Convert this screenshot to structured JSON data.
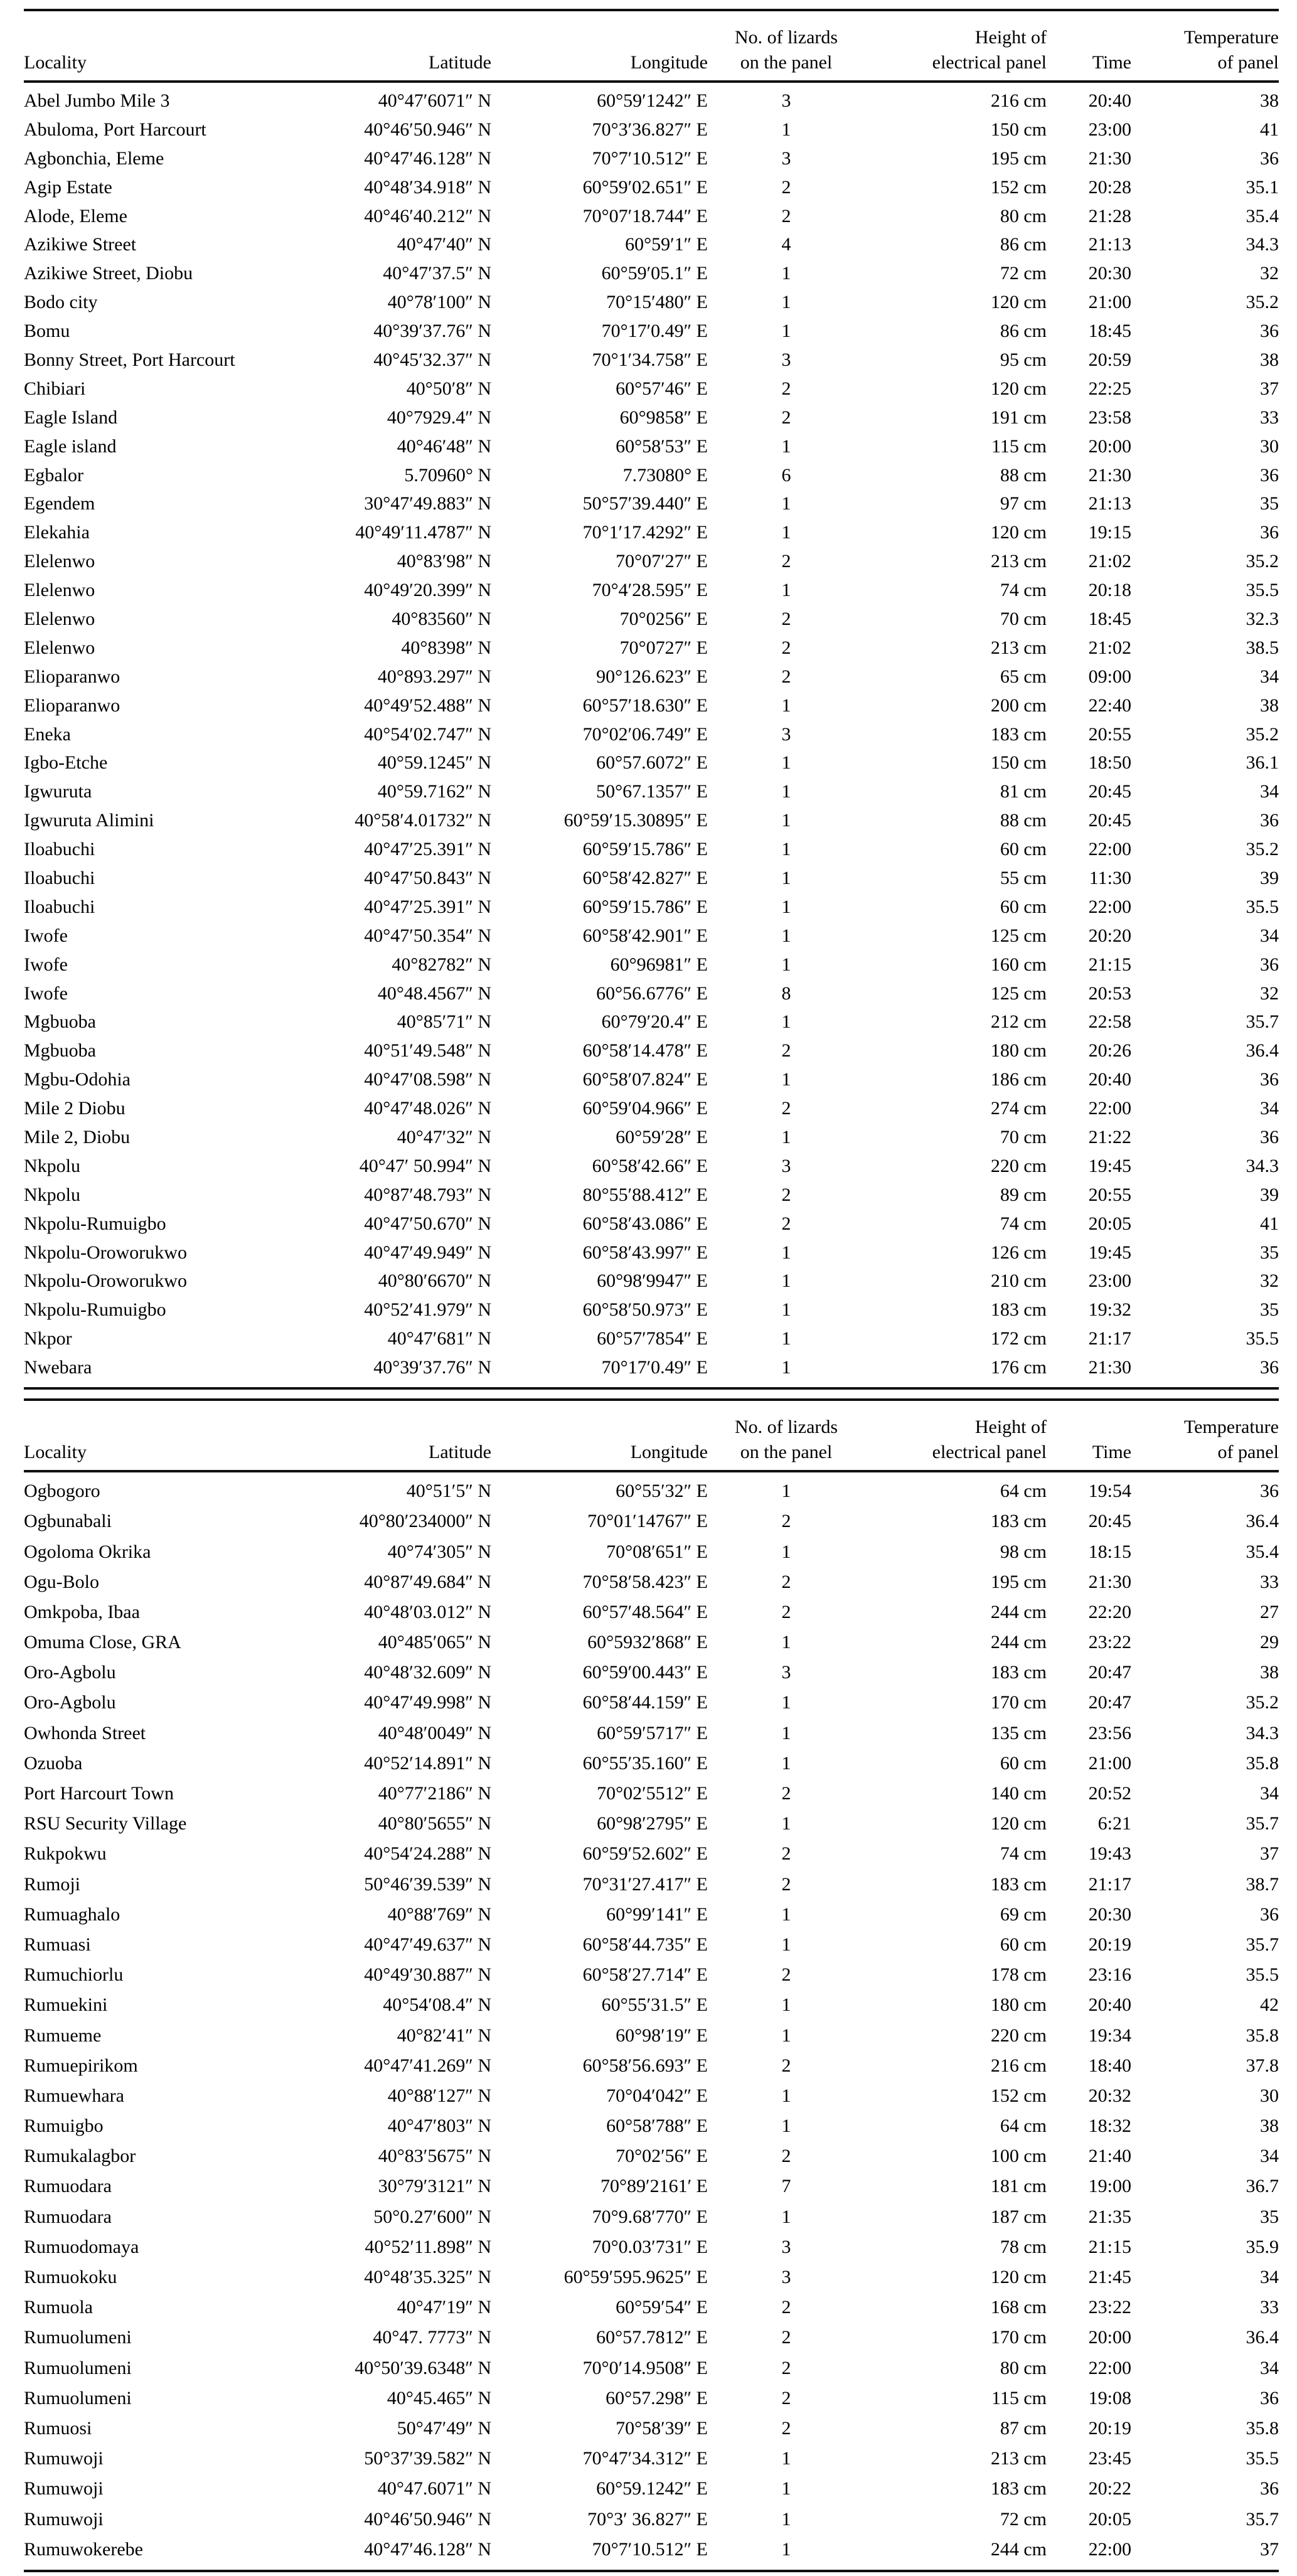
{
  "columns": {
    "locality": "Locality",
    "latitude": "Latitude",
    "longitude": "Longitude",
    "lizards_line1": "No. of lizards",
    "lizards_line2": "on the panel",
    "height_line1": "Height of",
    "height_line2": "electrical panel",
    "time": "Time",
    "temp_line1": "Temperature",
    "temp_line2": "of panel"
  },
  "tables": [
    {
      "rows": [
        [
          "Abel Jumbo Mile 3",
          "40°47′6071″ N",
          "60°59′1242″ E",
          "3",
          "216 cm",
          "20:40",
          "38"
        ],
        [
          "Abuloma, Port Harcourt",
          "40°46′50.946″ N",
          "70°3′36.827″ E",
          "1",
          "150 cm",
          "23:00",
          "41"
        ],
        [
          "Agbonchia, Eleme",
          "40°47′46.128″ N",
          "70°7′10.512″ E",
          "3",
          "195 cm",
          "21:30",
          "36"
        ],
        [
          "Agip Estate",
          "40°48′34.918″ N",
          "60°59′02.651″ E",
          "2",
          "152 cm",
          "20:28",
          "35.1"
        ],
        [
          "Alode, Eleme",
          "40°46′40.212″ N",
          "70°07′18.744″ E",
          "2",
          "80 cm",
          "21:28",
          "35.4"
        ],
        [
          "Azikiwe Street",
          "40°47′40″ N",
          "60°59′1″ E",
          "4",
          "86 cm",
          "21:13",
          "34.3"
        ],
        [
          "Azikiwe Street, Diobu",
          "40°47′37.5″ N",
          "60°59′05.1″ E",
          "1",
          "72 cm",
          "20:30",
          "32"
        ],
        [
          "Bodo city",
          "40°78′100″ N",
          "70°15′480″ E",
          "1",
          "120 cm",
          "21:00",
          "35.2"
        ],
        [
          "Bomu",
          "40°39′37.76″ N",
          "70°17′0.49″ E",
          "1",
          "86 cm",
          "18:45",
          "36"
        ],
        [
          "Bonny Street, Port Harcourt",
          "40°45′32.37″ N",
          "70°1′34.758″ E",
          "3",
          "95 cm",
          "20:59",
          "38"
        ],
        [
          "Chibiari",
          "40°50′8″ N",
          "60°57′46″ E",
          "2",
          "120 cm",
          "22:25",
          "37"
        ],
        [
          "Eagle Island",
          "40°7929.4″ N",
          "60°9858″ E",
          "2",
          "191 cm",
          "23:58",
          "33"
        ],
        [
          "Eagle island",
          "40°46′48″ N",
          "60°58′53″ E",
          "1",
          "115 cm",
          "20:00",
          "30"
        ],
        [
          "Egbalor",
          "5.70960° N",
          "7.73080° E",
          "6",
          "88 cm",
          "21:30",
          "36"
        ],
        [
          "Egendem",
          "30°47′49.883″ N",
          "50°57′39.440″ E",
          "1",
          "97 cm",
          "21:13",
          "35"
        ],
        [
          "Elekahia",
          "40°49′11.4787″ N",
          "70°1′17.4292″ E",
          "1",
          "120 cm",
          "19:15",
          "36"
        ],
        [
          "Elelenwo",
          "40°83′98″ N",
          "70°07′27″ E",
          "2",
          "213 cm",
          "21:02",
          "35.2"
        ],
        [
          "Elelenwo",
          "40°49′20.399″ N",
          "70°4′28.595″ E",
          "1",
          "74 cm",
          "20:18",
          "35.5"
        ],
        [
          "Elelenwo",
          "40°83560″ N",
          "70°0256″ E",
          "2",
          "70 cm",
          "18:45",
          "32.3"
        ],
        [
          "Elelenwo",
          "40°8398″ N",
          "70°0727″ E",
          "2",
          "213 cm",
          "21:02",
          "38.5"
        ],
        [
          "Elioparanwo",
          "40°893.297″ N",
          "90°126.623″ E",
          "2",
          "65 cm",
          "09:00",
          "34"
        ],
        [
          "Elioparanwo",
          "40°49′52.488″ N",
          "60°57′18.630″ E",
          "1",
          "200 cm",
          "22:40",
          "38"
        ],
        [
          "Eneka",
          "40°54′02.747″ N",
          "70°02′06.749″ E",
          "3",
          "183 cm",
          "20:55",
          "35.2"
        ],
        [
          "Igbo-Etche",
          "40°59.1245″ N",
          "60°57.6072″ E",
          "1",
          "150 cm",
          "18:50",
          "36.1"
        ],
        [
          "Igwuruta",
          "40°59.7162″ N",
          "50°67.1357″ E",
          "1",
          "81 cm",
          "20:45",
          "34"
        ],
        [
          "Igwuruta Alimini",
          "40°58′4.01732″ N",
          "60°59′15.30895″ E",
          "1",
          "88 cm",
          "20:45",
          "36"
        ],
        [
          "Iloabuchi",
          "40°47′25.391″ N",
          "60°59′15.786″ E",
          "1",
          "60 cm",
          "22:00",
          "35.2"
        ],
        [
          "Iloabuchi",
          "40°47′50.843″ N",
          "60°58′42.827″ E",
          "1",
          "55 cm",
          "11:30",
          "39"
        ],
        [
          "Iloabuchi",
          "40°47′25.391″ N",
          "60°59′15.786″ E",
          "1",
          "60 cm",
          "22:00",
          "35.5"
        ],
        [
          "Iwofe",
          "40°47′50.354″ N",
          "60°58′42.901″ E",
          "1",
          "125 cm",
          "20:20",
          "34"
        ],
        [
          "Iwofe",
          "40°82782″ N",
          "60°96981″ E",
          "1",
          "160 cm",
          "21:15",
          "36"
        ],
        [
          "Iwofe",
          "40°48.4567″ N",
          "60°56.6776″ E",
          "8",
          "125 cm",
          "20:53",
          "32"
        ],
        [
          "Mgbuoba",
          "40°85′71″ N",
          "60°79′20.4″ E",
          "1",
          "212 cm",
          "22:58",
          "35.7"
        ],
        [
          "Mgbuoba",
          "40°51′49.548″ N",
          "60°58′14.478″ E",
          "2",
          "180 cm",
          "20:26",
          "36.4"
        ],
        [
          "Mgbu-Odohia",
          "40°47′08.598″ N",
          "60°58′07.824″ E",
          "1",
          "186 cm",
          "20:40",
          "36"
        ],
        [
          "Mile 2 Diobu",
          "40°47′48.026″ N",
          "60°59′04.966″ E",
          "2",
          "274 cm",
          "22:00",
          "34"
        ],
        [
          "Mile 2, Diobu",
          "40°47′32″ N",
          "60°59′28″ E",
          "1",
          "70 cm",
          "21:22",
          "36"
        ],
        [
          "Nkpolu",
          "40°47′ 50.994″ N",
          "60°58′42.66″ E",
          "3",
          "220 cm",
          "19:45",
          "34.3"
        ],
        [
          "Nkpolu",
          "40°87′48.793″ N",
          "80°55′88.412″ E",
          "2",
          "89 cm",
          "20:55",
          "39"
        ],
        [
          "Nkpolu-Rumuigbo",
          "40°47′50.670″ N",
          "60°58′43.086″ E",
          "2",
          "74 cm",
          "20:05",
          "41"
        ],
        [
          "Nkpolu-Oroworukwo",
          "40°47′49.949″ N",
          "60°58′43.997″ E",
          "1",
          "126 cm",
          "19:45",
          "35"
        ],
        [
          "Nkpolu-Oroworukwo",
          "40°80′6670″ N",
          "60°98′9947″ E",
          "1",
          "210 cm",
          "23:00",
          "32"
        ],
        [
          "Nkpolu-Rumuigbo",
          "40°52′41.979″ N",
          "60°58′50.973″ E",
          "1",
          "183 cm",
          "19:32",
          "35"
        ],
        [
          "Nkpor",
          "40°47′681″ N",
          "60°57′7854″ E",
          "1",
          "172 cm",
          "21:17",
          "35.5"
        ],
        [
          "Nwebara",
          "40°39′37.76″ N",
          "70°17′0.49″ E",
          "1",
          "176 cm",
          "21:30",
          "36"
        ]
      ]
    },
    {
      "rows": [
        [
          "Ogbogoro",
          "40°51′5″ N",
          "60°55′32″ E",
          "1",
          "64 cm",
          "19:54",
          "36"
        ],
        [
          "Ogbunabali",
          "40°80′234000″ N",
          "70°01′14767″ E",
          "2",
          "183 cm",
          "20:45",
          "36.4"
        ],
        [
          "Ogoloma Okrika",
          "40°74′305″ N",
          "70°08′651″ E",
          "1",
          "98 cm",
          "18:15",
          "35.4"
        ],
        [
          "Ogu-Bolo",
          "40°87′49.684″ N",
          "70°58′58.423″ E",
          "2",
          "195 cm",
          "21:30",
          "33"
        ],
        [
          "Omkpoba, Ibaa",
          "40°48′03.012″ N",
          "60°57′48.564″ E",
          "2",
          "244 cm",
          "22:20",
          "27"
        ],
        [
          "Omuma Close, GRA",
          "40°485′065″ N",
          "60°5932′868″ E",
          "1",
          "244 cm",
          "23:22",
          "29"
        ],
        [
          "Oro-Agbolu",
          "40°48′32.609″ N",
          "60°59′00.443″ E",
          "3",
          "183 cm",
          "20:47",
          "38"
        ],
        [
          "Oro-Agbolu",
          "40°47′49.998″ N",
          "60°58′44.159″ E",
          "1",
          "170 cm",
          "20:47",
          "35.2"
        ],
        [
          "Owhonda Street",
          "40°48′0049″ N",
          "60°59′5717″ E",
          "1",
          "135 cm",
          "23:56",
          "34.3"
        ],
        [
          "Ozuoba",
          "40°52′14.891″ N",
          "60°55′35.160″ E",
          "1",
          "60 cm",
          "21:00",
          "35.8"
        ],
        [
          "Port Harcourt Town",
          "40°77′2186″ N",
          "70°02′5512″ E",
          "2",
          "140 cm",
          "20:52",
          "34"
        ],
        [
          "RSU Security Village",
          "40°80′5655″ N",
          "60°98′2795″ E",
          "1",
          "120 cm",
          "6:21",
          "35.7"
        ],
        [
          "Rukpokwu",
          "40°54′24.288″ N",
          "60°59′52.602″ E",
          "2",
          "74 cm",
          "19:43",
          "37"
        ],
        [
          "Rumoji",
          "50°46′39.539″ N",
          "70°31′27.417″ E",
          "2",
          "183 cm",
          "21:17",
          "38.7"
        ],
        [
          "Rumuaghalo",
          "40°88′769″ N",
          "60°99′141″ E",
          "1",
          "69 cm",
          "20:30",
          "36"
        ],
        [
          "Rumuasi",
          "40°47′49.637″ N",
          "60°58′44.735″ E",
          "1",
          "60 cm",
          "20:19",
          "35.7"
        ],
        [
          "Rumuchiorlu",
          "40°49′30.887″ N",
          "60°58′27.714″ E",
          "2",
          "178 cm",
          "23:16",
          "35.5"
        ],
        [
          "Rumuekini",
          "40°54′08.4″ N",
          "60°55′31.5″ E",
          "1",
          "180 cm",
          "20:40",
          "42"
        ],
        [
          "Rumueme",
          "40°82′41″ N",
          "60°98′19″ E",
          "1",
          "220 cm",
          "19:34",
          "35.8"
        ],
        [
          "Rumuepirikom",
          "40°47′41.269″ N",
          "60°58′56.693″ E",
          "2",
          "216 cm",
          "18:40",
          "37.8"
        ],
        [
          "Rumuewhara",
          "40°88′127″ N",
          "70°04′042″ E",
          "1",
          "152 cm",
          "20:32",
          "30"
        ],
        [
          "Rumuigbo",
          "40°47′803″ N",
          "60°58′788″ E",
          "1",
          "64 cm",
          "18:32",
          "38"
        ],
        [
          "Rumukalagbor",
          "40°83′5675″ N",
          "70°02′56″ E",
          "2",
          "100 cm",
          "21:40",
          "34"
        ],
        [
          "Rumuodara",
          "30°79′3121″ N",
          "70°89′2161′ E",
          "7",
          "181 cm",
          "19:00",
          "36.7"
        ],
        [
          "Rumuodara",
          "50°0.27′600″ N",
          "70°9.68′770″ E",
          "1",
          "187 cm",
          "21:35",
          "35"
        ],
        [
          "Rumuodomaya",
          "40°52′11.898″ N",
          "70°0.03′731″ E",
          "3",
          "78 cm",
          "21:15",
          "35.9"
        ],
        [
          "Rumuokoku",
          "40°48′35.325″ N",
          "60°59′595.9625″ E",
          "3",
          "120 cm",
          "21:45",
          "34"
        ],
        [
          "Rumuola",
          "40°47′19″ N",
          "60°59′54″ E",
          "2",
          "168 cm",
          "23:22",
          "33"
        ],
        [
          "Rumuolumeni",
          "40°47. 7773″ N",
          "60°57.7812″ E",
          "2",
          "170 cm",
          "20:00",
          "36.4"
        ],
        [
          "Rumuolumeni",
          "40°50′39.6348″ N",
          "70°0′14.9508″ E",
          "2",
          "80 cm",
          "22:00",
          "34"
        ],
        [
          "Rumuolumeni",
          "40°45.465″ N",
          "60°57.298″ E",
          "2",
          "115 cm",
          "19:08",
          "36"
        ],
        [
          "Rumuosi",
          "50°47′49″ N",
          "70°58′39″ E",
          "2",
          "87 cm",
          "20:19",
          "35.8"
        ],
        [
          "Rumuwoji",
          "50°37′39.582″ N",
          "70°47′34.312″ E",
          "1",
          "213 cm",
          "23:45",
          "35.5"
        ],
        [
          "Rumuwoji",
          "40°47.6071″ N",
          "60°59.1242″ E",
          "1",
          "183 cm",
          "20:22",
          "36"
        ],
        [
          "Rumuwoji",
          "40°46′50.946″ N",
          "70°3′ 36.827″ E",
          "1",
          "72 cm",
          "20:05",
          "35.7"
        ],
        [
          "Rumuwokerebe",
          "40°47′46.128″ N",
          "70°7′10.512″ E",
          "1",
          "244 cm",
          "22:00",
          "37"
        ]
      ]
    }
  ]
}
